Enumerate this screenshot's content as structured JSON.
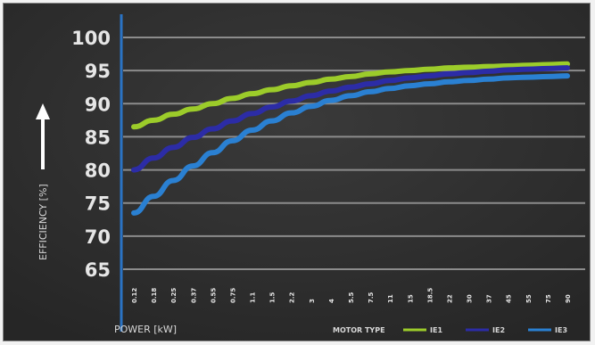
{
  "chart_data": {
    "type": "line",
    "title": "",
    "xlabel": "POWER [kW]",
    "ylabel": "EFFICIENCY [%]",
    "ylim": [
      65,
      100
    ],
    "yticks": [
      65,
      70,
      75,
      80,
      85,
      90,
      95,
      100
    ],
    "x_tick_labels": [
      "0.12",
      "0.18",
      "0.25",
      "0.37",
      "0.55",
      "0.75",
      "1.1",
      "1.5",
      "2.2",
      "3",
      "4",
      "5.5",
      "7.5",
      "11",
      "15",
      "18.5",
      "22",
      "30",
      "37",
      "45",
      "55",
      "75",
      "90"
    ],
    "grid": true,
    "legend_position": "bottom-right",
    "legend_title": "MOTOR TYPE",
    "series": [
      {
        "name": "IE1",
        "color": "#9ccc2a",
        "values": [
          86.5,
          87.5,
          88.4,
          89.2,
          90.0,
          90.8,
          91.5,
          92.1,
          92.7,
          93.2,
          93.7,
          94.1,
          94.5,
          94.8,
          95.0,
          95.2,
          95.4,
          95.5,
          95.6,
          95.7,
          95.8,
          95.9,
          96.0
        ]
      },
      {
        "name": "IE2",
        "color": "#2c2ca6",
        "values": [
          80.0,
          81.8,
          83.4,
          84.9,
          86.2,
          87.4,
          88.5,
          89.5,
          90.4,
          91.2,
          91.9,
          92.5,
          93.0,
          93.5,
          93.9,
          94.2,
          94.5,
          94.7,
          94.9,
          95.1,
          95.2,
          95.3,
          95.4
        ]
      },
      {
        "name": "IE3",
        "color": "#2a80d2",
        "values": [
          73.5,
          76.0,
          78.4,
          80.6,
          82.6,
          84.4,
          86.0,
          87.4,
          88.6,
          89.6,
          90.5,
          91.2,
          91.8,
          92.3,
          92.7,
          93.0,
          93.3,
          93.5,
          93.7,
          93.9,
          94.0,
          94.1,
          94.2
        ]
      }
    ]
  }
}
